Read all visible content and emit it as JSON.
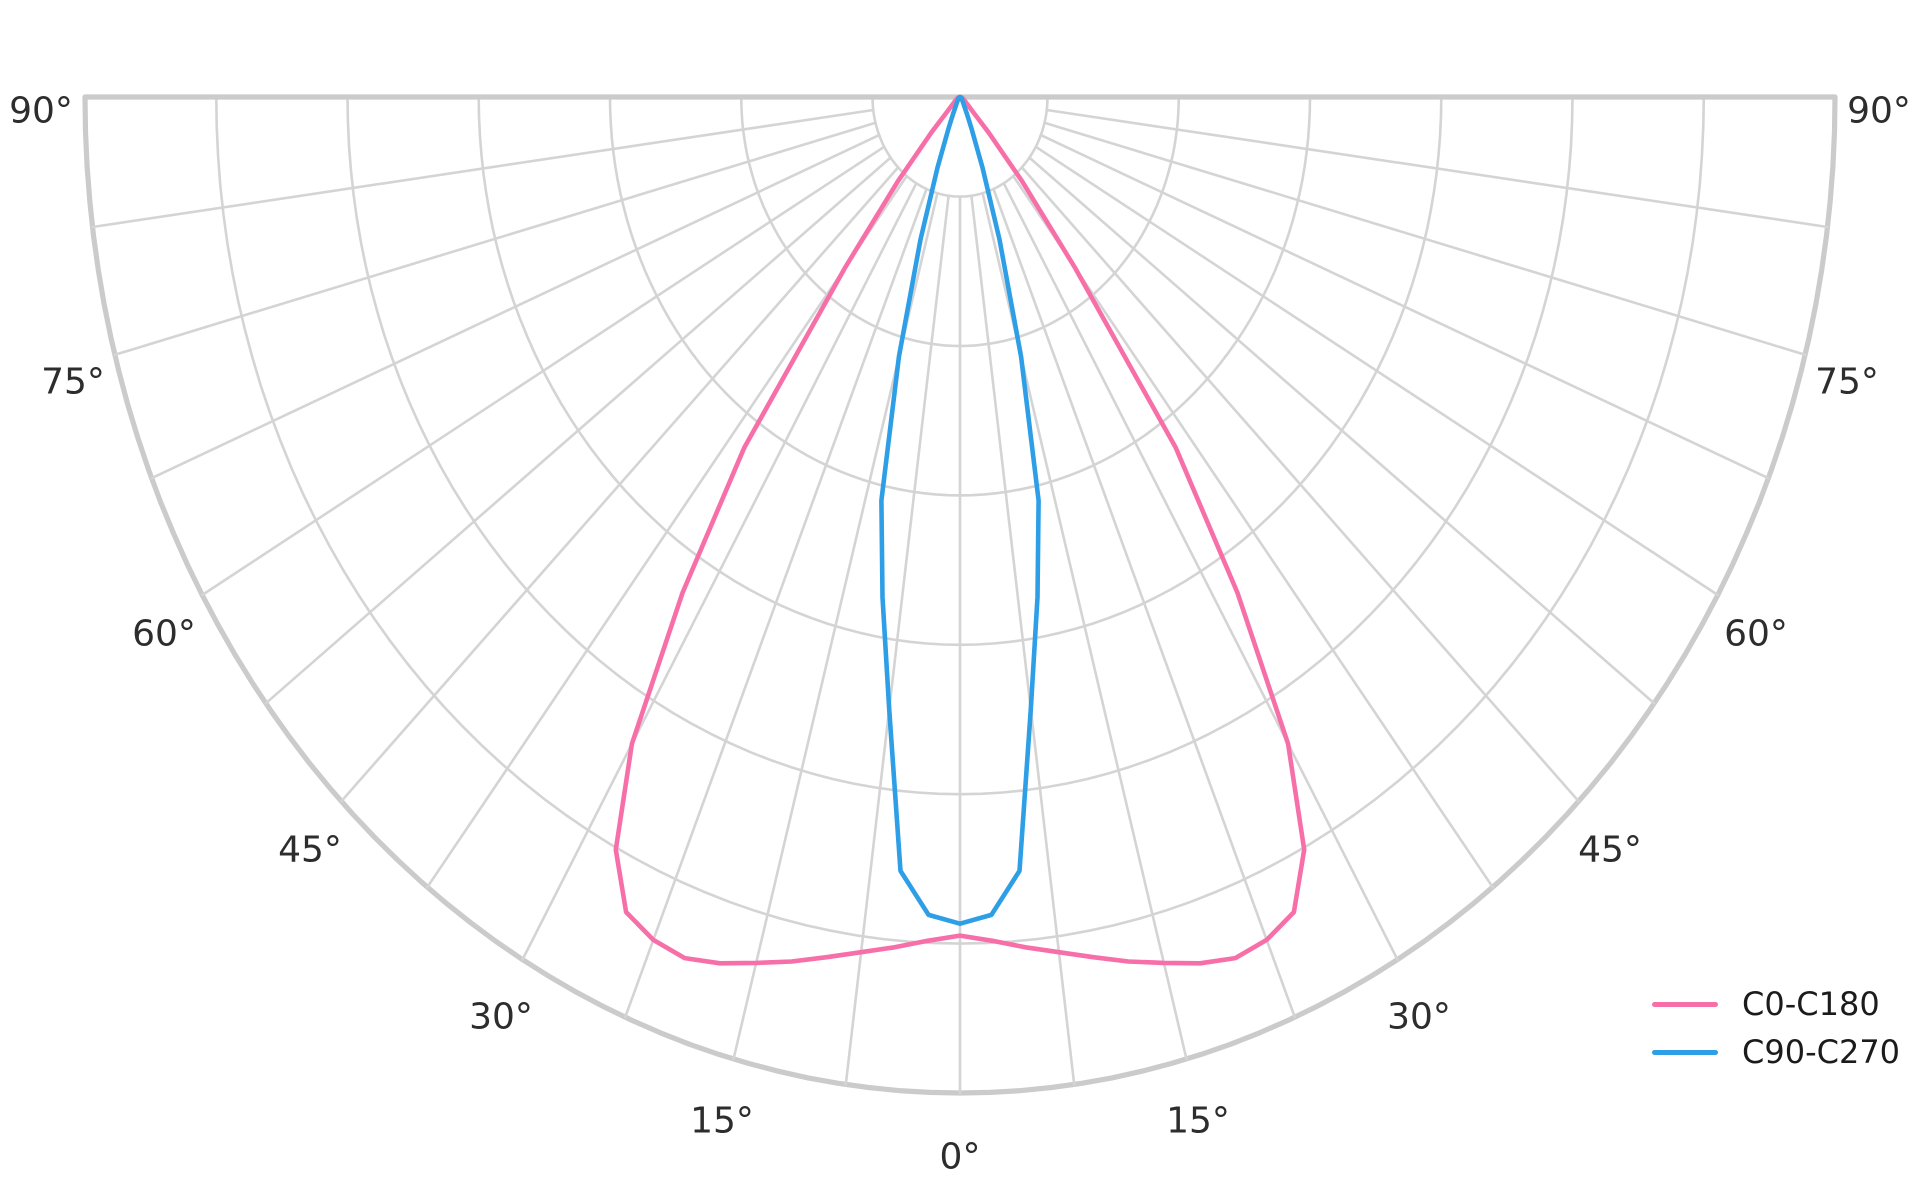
{
  "chart_data": {
    "type": "polar",
    "subtype": "photometric-intensity-distribution",
    "title": "",
    "angle_unit": "deg",
    "angle_zero_direction": "down-nadir",
    "angle_range_deg": [
      -90,
      90
    ],
    "angle_ticks": [
      0,
      15,
      30,
      45,
      60,
      75,
      90
    ],
    "tick_suffix": "°",
    "tick_sides": [
      "left",
      "right"
    ],
    "ring_fractions": [
      0.1,
      0.25,
      0.4,
      0.55,
      0.7,
      0.85,
      1.0
    ],
    "spoke_step_deg": 7.5,
    "radial_axis": {
      "labeled": false,
      "rmax": 1.0
    },
    "grid": true,
    "symmetry": "mirrored-about-vertical-axis",
    "series": [
      {
        "name": "C0-C180",
        "color": "#F76FA8",
        "angles_deg": [
          0,
          2.5,
          5,
          7.5,
          10,
          12.5,
          15,
          17.5,
          20,
          22.5,
          25,
          27.5,
          30,
          32.5,
          35,
          37.5,
          40,
          42.5,
          45,
          50,
          60,
          75,
          90
        ],
        "values": [
          0.842,
          0.848,
          0.857,
          0.866,
          0.877,
          0.889,
          0.9,
          0.912,
          0.92,
          0.916,
          0.903,
          0.852,
          0.75,
          0.59,
          0.43,
          0.215,
          0.11,
          0.048,
          0.02,
          0.01,
          0.005,
          0.002,
          0.0
        ]
      },
      {
        "name": "C90-C270",
        "color": "#2E9FE6",
        "angles_deg": [
          0,
          2.5,
          5,
          7.5,
          10,
          12.5,
          15,
          17.5,
          20,
          22.5,
          25,
          30,
          40,
          60,
          90
        ],
        "values": [
          0.83,
          0.822,
          0.78,
          0.62,
          0.51,
          0.415,
          0.27,
          0.15,
          0.075,
          0.035,
          0.018,
          0.008,
          0.004,
          0.002,
          0.0
        ]
      }
    ],
    "legend_position": "bottom-right"
  },
  "legend": {
    "items": [
      {
        "label": "C0-C180"
      },
      {
        "label": "C90-C270"
      }
    ]
  },
  "colors": {
    "background": "#ffffff",
    "grid_inner": "#D4D4D4",
    "grid_boundary": "#CBCBCB",
    "tick_text": "#2d2d2d",
    "legend_text": "#1b1b1b",
    "series_c0_c180": "#F76FA8",
    "series_c90_c270": "#2E9FE6"
  }
}
